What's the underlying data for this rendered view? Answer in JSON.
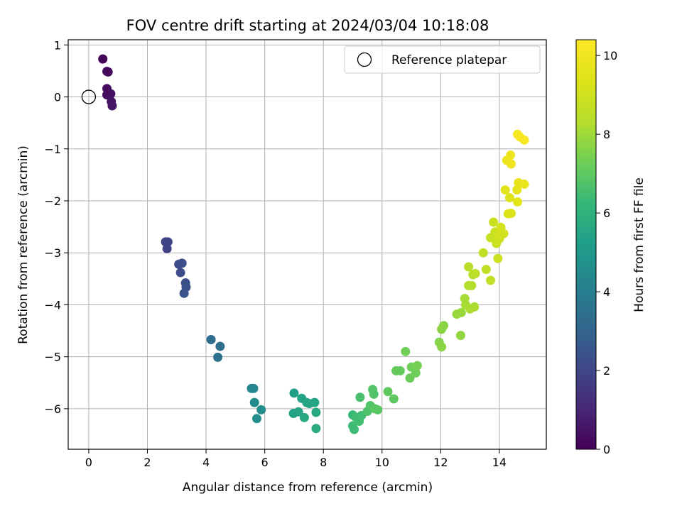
{
  "chart_data": {
    "type": "scatter",
    "title": "FOV centre drift starting at 2024/03/04 10:18:08",
    "xlabel": "Angular distance from reference (arcmin)",
    "ylabel": "Rotation from reference (arcmin)",
    "xlim": [
      -0.7,
      15.6
    ],
    "ylim": [
      -6.78,
      1.1
    ],
    "xticks": [
      0,
      2,
      4,
      6,
      8,
      10,
      12,
      14
    ],
    "yticks": [
      1,
      0,
      -1,
      -2,
      -3,
      -4,
      -5,
      -6
    ],
    "grid": true,
    "legend": {
      "placement": "top-right",
      "label": "Reference platepar"
    },
    "reference_point": {
      "x": 0,
      "y": 0
    },
    "colorbar": {
      "label": "Hours from first FF file",
      "colormap": "viridis",
      "range": [
        0,
        10.4
      ],
      "ticks": [
        0,
        2,
        4,
        6,
        8,
        10
      ]
    },
    "points": [
      {
        "x": 0.48,
        "y": 0.73,
        "c": 0.1
      },
      {
        "x": 0.62,
        "y": 0.49,
        "c": 0.2
      },
      {
        "x": 0.66,
        "y": 0.48,
        "c": 0.2
      },
      {
        "x": 0.62,
        "y": 0.16,
        "c": 0.3
      },
      {
        "x": 0.75,
        "y": 0.06,
        "c": 0.4
      },
      {
        "x": 0.62,
        "y": 0.04,
        "c": 0.3
      },
      {
        "x": 0.77,
        "y": -0.09,
        "c": 0.5
      },
      {
        "x": 0.8,
        "y": -0.17,
        "c": 0.5
      },
      {
        "x": 2.62,
        "y": -2.79,
        "c": 1.9
      },
      {
        "x": 2.7,
        "y": -2.79,
        "c": 1.9
      },
      {
        "x": 2.67,
        "y": -2.92,
        "c": 1.9
      },
      {
        "x": 3.07,
        "y": -3.22,
        "c": 2.1
      },
      {
        "x": 3.18,
        "y": -3.2,
        "c": 2.2
      },
      {
        "x": 3.13,
        "y": -3.38,
        "c": 2.2
      },
      {
        "x": 3.3,
        "y": -3.58,
        "c": 2.3
      },
      {
        "x": 3.32,
        "y": -3.66,
        "c": 2.3
      },
      {
        "x": 3.25,
        "y": -3.78,
        "c": 2.4
      },
      {
        "x": 4.17,
        "y": -4.67,
        "c": 3.3
      },
      {
        "x": 4.48,
        "y": -4.8,
        "c": 3.4
      },
      {
        "x": 4.4,
        "y": -5.01,
        "c": 3.4
      },
      {
        "x": 5.55,
        "y": -5.61,
        "c": 4.3
      },
      {
        "x": 5.62,
        "y": -5.61,
        "c": 4.3
      },
      {
        "x": 5.65,
        "y": -5.88,
        "c": 4.5
      },
      {
        "x": 5.73,
        "y": -6.19,
        "c": 4.6
      },
      {
        "x": 5.88,
        "y": -6.02,
        "c": 4.6
      },
      {
        "x": 7.0,
        "y": -5.7,
        "c": 5.3
      },
      {
        "x": 7.26,
        "y": -5.8,
        "c": 5.4
      },
      {
        "x": 7.43,
        "y": -5.88,
        "c": 5.5
      },
      {
        "x": 7.52,
        "y": -5.9,
        "c": 5.5
      },
      {
        "x": 7.7,
        "y": -5.88,
        "c": 5.5
      },
      {
        "x": 7.15,
        "y": -6.06,
        "c": 5.5
      },
      {
        "x": 6.98,
        "y": -6.09,
        "c": 5.4
      },
      {
        "x": 7.35,
        "y": -6.17,
        "c": 5.6
      },
      {
        "x": 7.75,
        "y": -6.07,
        "c": 5.6
      },
      {
        "x": 7.75,
        "y": -6.38,
        "c": 5.7
      },
      {
        "x": 9.0,
        "y": -6.12,
        "c": 6.3
      },
      {
        "x": 9.1,
        "y": -6.16,
        "c": 6.4
      },
      {
        "x": 9.3,
        "y": -6.13,
        "c": 6.5
      },
      {
        "x": 9.25,
        "y": -5.78,
        "c": 6.6
      },
      {
        "x": 9.0,
        "y": -6.33,
        "c": 6.4
      },
      {
        "x": 9.05,
        "y": -6.4,
        "c": 6.4
      },
      {
        "x": 9.22,
        "y": -6.24,
        "c": 6.5
      },
      {
        "x": 9.5,
        "y": -6.05,
        "c": 6.7
      },
      {
        "x": 9.6,
        "y": -5.94,
        "c": 6.8
      },
      {
        "x": 9.68,
        "y": -5.63,
        "c": 6.8
      },
      {
        "x": 9.72,
        "y": -5.72,
        "c": 6.8
      },
      {
        "x": 9.75,
        "y": -6.0,
        "c": 6.9
      },
      {
        "x": 9.85,
        "y": -6.02,
        "c": 6.9
      },
      {
        "x": 10.2,
        "y": -5.67,
        "c": 7.0
      },
      {
        "x": 10.4,
        "y": -5.81,
        "c": 7.0
      },
      {
        "x": 10.48,
        "y": -5.27,
        "c": 7.1
      },
      {
        "x": 10.62,
        "y": -5.27,
        "c": 7.1
      },
      {
        "x": 10.8,
        "y": -4.9,
        "c": 7.3
      },
      {
        "x": 10.95,
        "y": -5.41,
        "c": 7.2
      },
      {
        "x": 11.0,
        "y": -5.2,
        "c": 7.3
      },
      {
        "x": 11.15,
        "y": -5.31,
        "c": 7.3
      },
      {
        "x": 11.2,
        "y": -5.17,
        "c": 7.4
      },
      {
        "x": 11.95,
        "y": -4.72,
        "c": 7.6
      },
      {
        "x": 12.03,
        "y": -4.81,
        "c": 7.7
      },
      {
        "x": 12.03,
        "y": -4.47,
        "c": 7.7
      },
      {
        "x": 12.1,
        "y": -4.4,
        "c": 7.7
      },
      {
        "x": 12.55,
        "y": -4.18,
        "c": 7.9
      },
      {
        "x": 12.7,
        "y": -4.15,
        "c": 7.9
      },
      {
        "x": 12.68,
        "y": -4.59,
        "c": 7.8
      },
      {
        "x": 12.82,
        "y": -3.88,
        "c": 8.1
      },
      {
        "x": 12.85,
        "y": -4.0,
        "c": 8.1
      },
      {
        "x": 13.0,
        "y": -4.08,
        "c": 8.2
      },
      {
        "x": 13.15,
        "y": -4.04,
        "c": 8.2
      },
      {
        "x": 12.95,
        "y": -3.63,
        "c": 8.3
      },
      {
        "x": 13.05,
        "y": -3.63,
        "c": 8.3
      },
      {
        "x": 12.95,
        "y": -3.27,
        "c": 8.4
      },
      {
        "x": 13.1,
        "y": -3.42,
        "c": 8.4
      },
      {
        "x": 13.18,
        "y": -3.4,
        "c": 8.5
      },
      {
        "x": 13.45,
        "y": -3.0,
        "c": 8.6
      },
      {
        "x": 13.7,
        "y": -3.53,
        "c": 8.6
      },
      {
        "x": 13.55,
        "y": -3.32,
        "c": 8.6
      },
      {
        "x": 13.7,
        "y": -2.71,
        "c": 8.8
      },
      {
        "x": 13.85,
        "y": -2.6,
        "c": 8.8
      },
      {
        "x": 13.9,
        "y": -2.82,
        "c": 8.9
      },
      {
        "x": 13.95,
        "y": -3.11,
        "c": 8.9
      },
      {
        "x": 13.8,
        "y": -2.41,
        "c": 8.9
      },
      {
        "x": 14.0,
        "y": -2.73,
        "c": 9.0
      },
      {
        "x": 14.05,
        "y": -2.51,
        "c": 9.1
      },
      {
        "x": 14.15,
        "y": -2.63,
        "c": 9.1
      },
      {
        "x": 13.95,
        "y": -2.66,
        "c": 9.0
      },
      {
        "x": 14.3,
        "y": -2.25,
        "c": 9.3
      },
      {
        "x": 14.4,
        "y": -2.24,
        "c": 9.3
      },
      {
        "x": 14.35,
        "y": -1.94,
        "c": 9.4
      },
      {
        "x": 14.2,
        "y": -1.79,
        "c": 9.5
      },
      {
        "x": 14.62,
        "y": -2.02,
        "c": 9.6
      },
      {
        "x": 14.6,
        "y": -1.79,
        "c": 9.6
      },
      {
        "x": 14.65,
        "y": -1.65,
        "c": 9.7
      },
      {
        "x": 14.85,
        "y": -1.68,
        "c": 9.8
      },
      {
        "x": 14.25,
        "y": -1.22,
        "c": 9.8
      },
      {
        "x": 14.38,
        "y": -1.12,
        "c": 9.9
      },
      {
        "x": 14.4,
        "y": -1.29,
        "c": 9.9
      },
      {
        "x": 14.62,
        "y": -0.72,
        "c": 10.2
      },
      {
        "x": 14.7,
        "y": -0.77,
        "c": 10.3
      },
      {
        "x": 14.85,
        "y": -0.83,
        "c": 10.3
      }
    ]
  }
}
